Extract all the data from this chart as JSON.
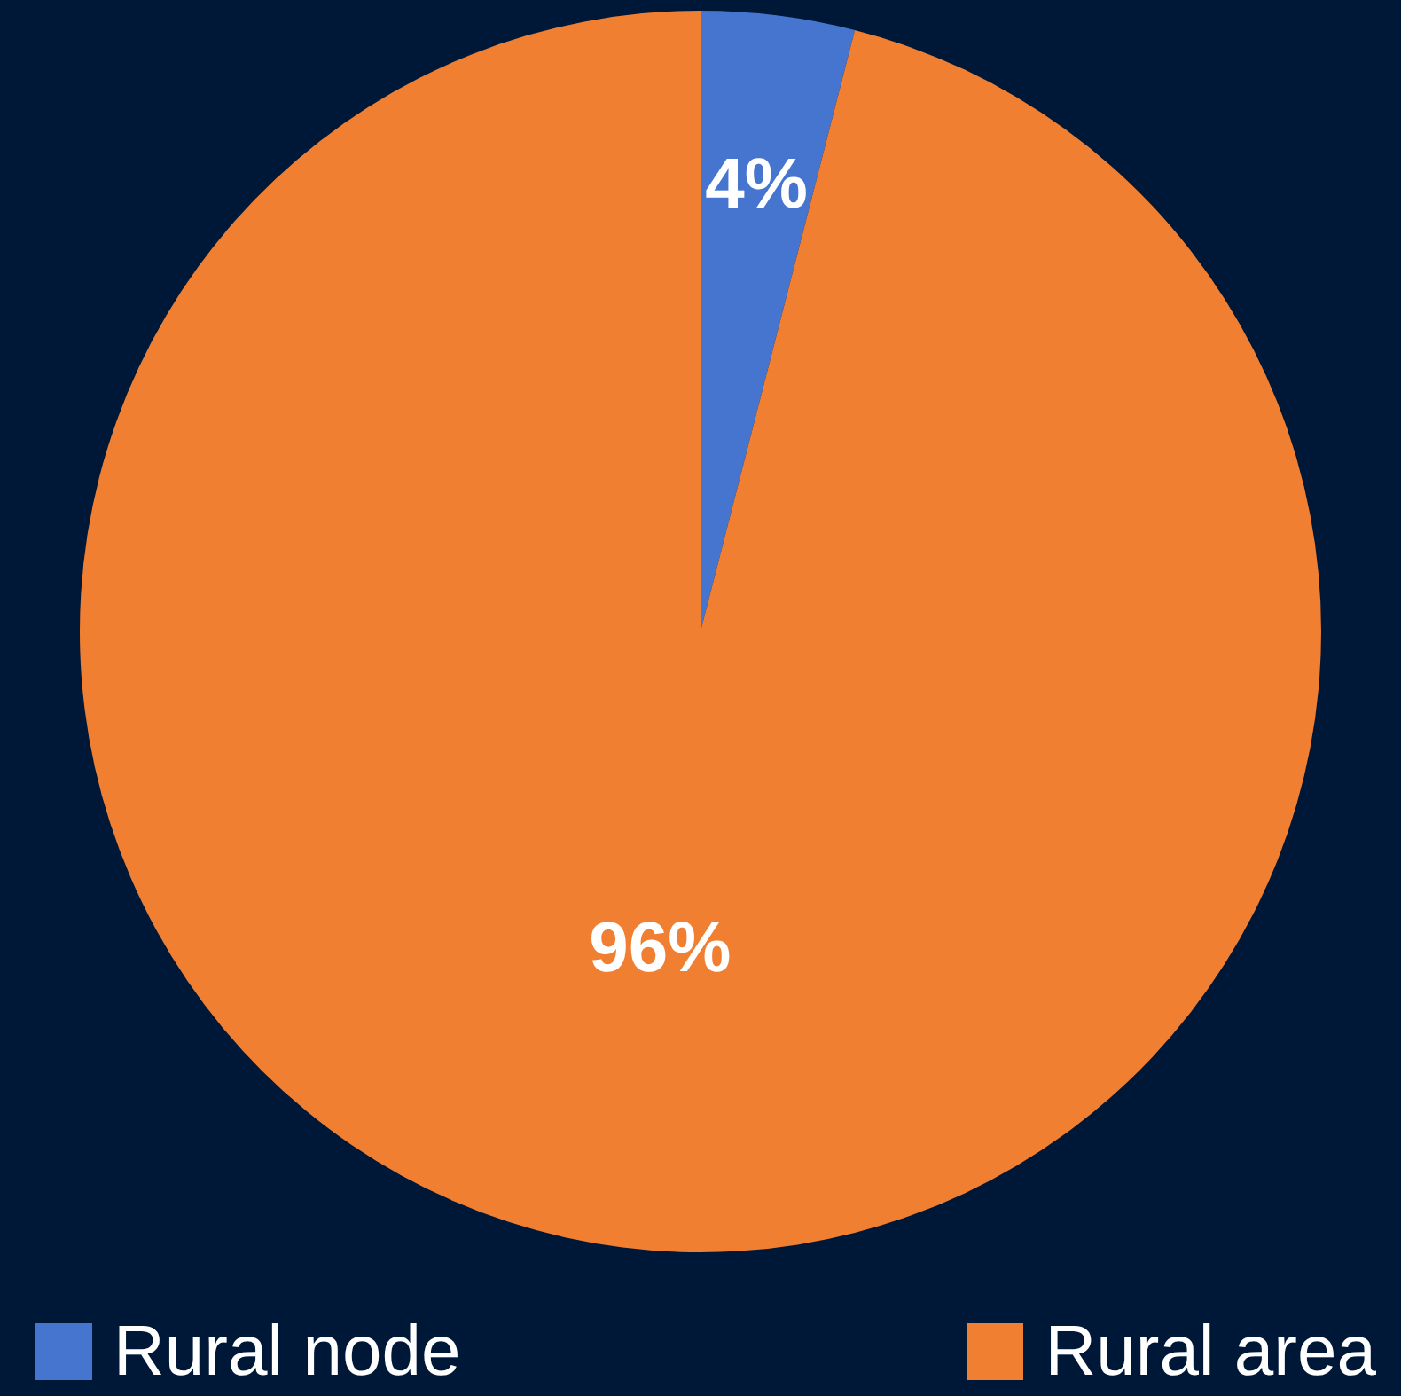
{
  "chart_data": {
    "type": "pie",
    "categories": [
      "Rural node",
      "Rural area"
    ],
    "values": [
      4,
      96
    ],
    "colors": [
      "#4675cf",
      "#f07f32"
    ],
    "value_labels": [
      "4%",
      "96%"
    ],
    "legend": "bottom"
  }
}
